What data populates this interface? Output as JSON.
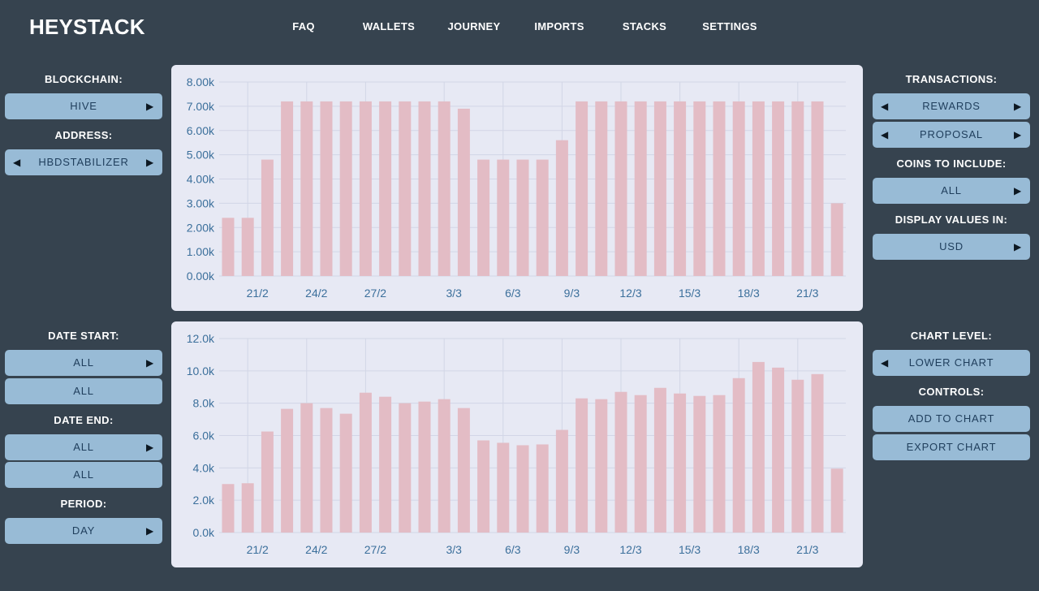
{
  "app": {
    "title": "HEYSTACK"
  },
  "nav": {
    "items": [
      "FAQ",
      "WALLETS",
      "JOURNEY",
      "IMPORTS",
      "STACKS",
      "SETTINGS"
    ]
  },
  "left_panel": {
    "blockchain_label": "BLOCKCHAIN:",
    "blockchain_value": "HIVE",
    "address_label": "ADDRESS:",
    "address_value": "HBDSTABILIZER",
    "date_start_label": "DATE START:",
    "date_start_value": "ALL",
    "date_start_value2": "ALL",
    "date_end_label": "DATE END:",
    "date_end_value": "ALL",
    "date_end_value2": "ALL",
    "period_label": "PERIOD:",
    "period_value": "DAY"
  },
  "right_panel": {
    "transactions_label": "TRANSACTIONS:",
    "transactions_value1": "REWARDS",
    "transactions_value2": "PROPOSAL",
    "coins_label": "COINS TO INCLUDE:",
    "coins_value": "ALL",
    "display_label": "DISPLAY VALUES IN:",
    "display_value": "USD",
    "chart_level_label": "CHART LEVEL:",
    "chart_level_value": "LOWER CHART",
    "controls_label": "CONTROLS:",
    "add_to_chart": "ADD TO CHART",
    "export_chart": "EXPORT CHART"
  },
  "colors": {
    "background": "#36434f",
    "button": "#98bbd6",
    "panel": "#e7e9f4",
    "bar": "#e3bcc5",
    "axis_text": "#3b6f9b"
  },
  "chart_data": [
    {
      "type": "bar",
      "x_tick_labels": [
        "21/2",
        "24/2",
        "27/2",
        "3/3",
        "6/3",
        "9/3",
        "12/3",
        "15/3",
        "18/3",
        "21/3"
      ],
      "y_tick_labels": [
        "0.00k",
        "1.00k",
        "2.00k",
        "3.00k",
        "4.00k",
        "5.00k",
        "6.00k",
        "7.00k",
        "8.00k"
      ],
      "ylim": [
        0,
        8000
      ],
      "grid": true,
      "values": [
        2400,
        2400,
        4800,
        7200,
        7200,
        7200,
        7200,
        7200,
        7200,
        7200,
        7200,
        7200,
        6900,
        4800,
        4800,
        4800,
        4800,
        5600,
        7200,
        7200,
        7200,
        7200,
        7200,
        7200,
        7200,
        7200,
        7200,
        7200,
        7200,
        7200,
        7200,
        3000
      ]
    },
    {
      "type": "bar",
      "x_tick_labels": [
        "21/2",
        "24/2",
        "27/2",
        "3/3",
        "6/3",
        "9/3",
        "12/3",
        "15/3",
        "18/3",
        "21/3"
      ],
      "y_tick_labels": [
        "0.0k",
        "2.0k",
        "4.0k",
        "6.0k",
        "8.0k",
        "10.0k",
        "12.0k"
      ],
      "ylim": [
        0,
        12000
      ],
      "grid": true,
      "values": [
        3000,
        3050,
        6250,
        7650,
        8000,
        7700,
        7350,
        8650,
        8400,
        8000,
        8100,
        8250,
        7700,
        5700,
        5550,
        5400,
        5450,
        6350,
        8300,
        8250,
        8700,
        8500,
        8950,
        8600,
        8450,
        8500,
        9550,
        10550,
        10200,
        9450,
        9800,
        3950
      ]
    }
  ]
}
